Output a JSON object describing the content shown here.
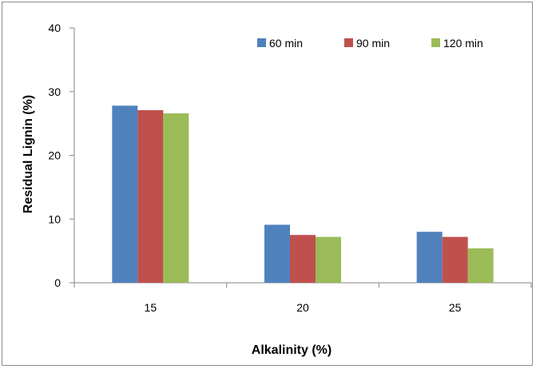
{
  "chart_data": {
    "type": "bar",
    "categories": [
      "15",
      "20",
      "25"
    ],
    "series": [
      {
        "name": "60 min",
        "values": [
          27.8,
          9.1,
          8.0
        ],
        "color": "#4F81BD"
      },
      {
        "name": "90 min",
        "values": [
          27.1,
          7.5,
          7.2
        ],
        "color": "#C0504D"
      },
      {
        "name": "120 min",
        "values": [
          26.6,
          7.2,
          5.4
        ],
        "color": "#9BBB59"
      }
    ],
    "title": "",
    "xlabel": "Alkalinity (%)",
    "ylabel": "Residual Lignin (%)",
    "ylim": [
      0,
      40
    ],
    "yticks": [
      0,
      10,
      20,
      30,
      40
    ],
    "grid": false,
    "legend_position": "top-right"
  }
}
